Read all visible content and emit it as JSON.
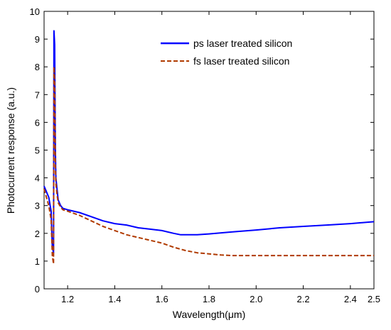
{
  "chart_data": {
    "type": "line",
    "xlabel": "Wavelength(μm)",
    "ylabel": "Photocurrent response (a.u.)",
    "xlim": [
      1.1,
      2.5
    ],
    "ylim": [
      0,
      10
    ],
    "xticks": [
      "1.2",
      "1.4",
      "1.6",
      "1.8",
      "2.0",
      "2.2",
      "2.4",
      "2.5"
    ],
    "yticks": [
      "0",
      "1",
      "2",
      "3",
      "4",
      "5",
      "6",
      "7",
      "8",
      "9",
      "10"
    ],
    "xtick_values": [
      1.2,
      1.4,
      1.6,
      1.8,
      2.0,
      2.2,
      2.4,
      2.5
    ],
    "ytick_values": [
      0,
      1,
      2,
      3,
      4,
      5,
      6,
      7,
      8,
      9,
      10
    ],
    "grid": false,
    "legend_position": "top-right",
    "series": [
      {
        "name": "ps laser treated silicon",
        "color": "#0000ff",
        "style": "solid",
        "x": [
          1.1,
          1.12,
          1.13,
          1.135,
          1.14,
          1.142,
          1.145,
          1.148,
          1.15,
          1.155,
          1.16,
          1.17,
          1.18,
          1.2,
          1.25,
          1.3,
          1.35,
          1.4,
          1.45,
          1.5,
          1.55,
          1.6,
          1.65,
          1.68,
          1.7,
          1.75,
          1.8,
          1.9,
          2.0,
          2.1,
          2.2,
          2.3,
          2.4,
          2.5
        ],
        "y": [
          3.7,
          3.3,
          2.8,
          1.5,
          1.3,
          9.3,
          8.8,
          5.0,
          4.0,
          3.6,
          3.2,
          3.0,
          2.9,
          2.85,
          2.75,
          2.6,
          2.45,
          2.35,
          2.3,
          2.2,
          2.15,
          2.1,
          2.0,
          1.95,
          1.95,
          1.95,
          1.98,
          2.05,
          2.12,
          2.2,
          2.25,
          2.3,
          2.35,
          2.42
        ]
      },
      {
        "name": "fs laser treated silicon",
        "color": "#b03a00",
        "style": "dashed",
        "x": [
          1.1,
          1.12,
          1.13,
          1.135,
          1.14,
          1.142,
          1.145,
          1.148,
          1.15,
          1.155,
          1.16,
          1.17,
          1.18,
          1.2,
          1.25,
          1.3,
          1.35,
          1.4,
          1.45,
          1.5,
          1.55,
          1.6,
          1.65,
          1.7,
          1.75,
          1.8,
          1.85,
          1.9,
          2.0,
          2.1,
          2.2,
          2.3,
          2.4,
          2.5
        ],
        "y": [
          3.6,
          3.0,
          2.5,
          1.2,
          0.9,
          8.0,
          7.5,
          4.4,
          3.8,
          3.4,
          3.1,
          2.95,
          2.85,
          2.8,
          2.65,
          2.45,
          2.25,
          2.1,
          1.95,
          1.85,
          1.75,
          1.65,
          1.5,
          1.38,
          1.3,
          1.26,
          1.22,
          1.2,
          1.2,
          1.2,
          1.2,
          1.2,
          1.2,
          1.2
        ]
      }
    ]
  }
}
